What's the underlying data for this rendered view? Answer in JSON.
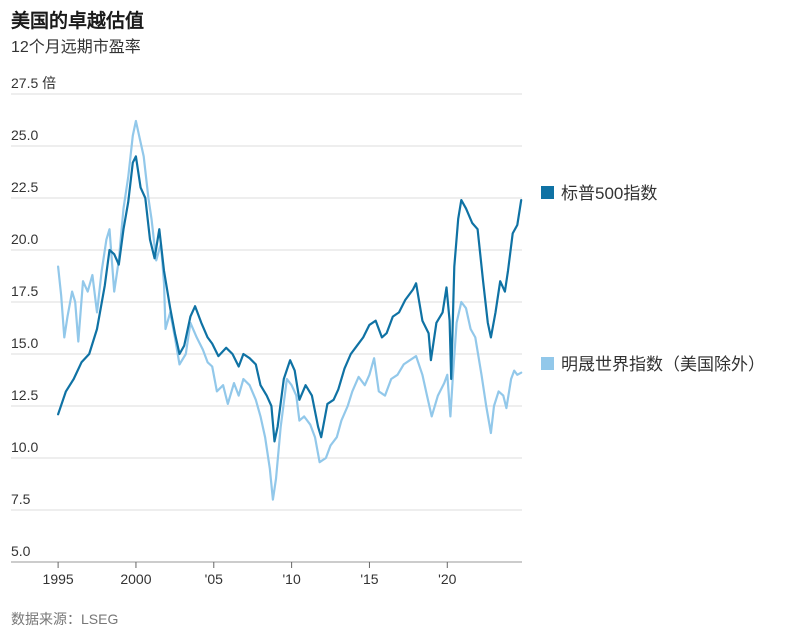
{
  "header": {
    "title": "美国的卓越估值",
    "subtitle": "12个月远期市盈率"
  },
  "footer": {
    "source": "数据来源：LSEG"
  },
  "chart_data": {
    "type": "line",
    "title": "美国的卓越估值",
    "subtitle": "12个月远期市盈率",
    "y_unit": "倍",
    "ylim": [
      5.0,
      27.5
    ],
    "y_ticks": [
      "27.5 倍",
      "25.0",
      "22.5",
      "20.0",
      "17.5",
      "15.0",
      "12.5",
      "10.0",
      "7.5",
      "5.0"
    ],
    "xlim": [
      1994.8,
      2024.8
    ],
    "x_ticks": [
      {
        "value": 1995,
        "label": "1995"
      },
      {
        "value": 2000,
        "label": "2000"
      },
      {
        "value": 2005,
        "label": "'05"
      },
      {
        "value": 2010,
        "label": "'10"
      },
      {
        "value": 2015,
        "label": "'15"
      },
      {
        "value": 2020,
        "label": "'20"
      }
    ],
    "grid": "horizontal",
    "legend": "right",
    "series": [
      {
        "name": "标普500指数",
        "color": "#0f72a4",
        "points": [
          [
            1995.0,
            12.1
          ],
          [
            1995.5,
            13.2
          ],
          [
            1996.0,
            13.8
          ],
          [
            1996.5,
            14.6
          ],
          [
            1997.0,
            15.0
          ],
          [
            1997.5,
            16.2
          ],
          [
            1998.0,
            18.3
          ],
          [
            1998.3,
            20.0
          ],
          [
            1998.6,
            19.8
          ],
          [
            1998.9,
            19.3
          ],
          [
            1999.2,
            21.0
          ],
          [
            1999.5,
            22.3
          ],
          [
            1999.8,
            24.2
          ],
          [
            2000.0,
            24.5
          ],
          [
            2000.3,
            23.0
          ],
          [
            2000.6,
            22.5
          ],
          [
            2000.9,
            20.5
          ],
          [
            2001.2,
            19.6
          ],
          [
            2001.5,
            21.0
          ],
          [
            2001.8,
            19.0
          ],
          [
            2002.2,
            17.2
          ],
          [
            2002.5,
            16.0
          ],
          [
            2002.8,
            15.0
          ],
          [
            2003.1,
            15.4
          ],
          [
            2003.5,
            16.8
          ],
          [
            2003.8,
            17.3
          ],
          [
            2004.2,
            16.5
          ],
          [
            2004.6,
            15.8
          ],
          [
            2004.9,
            15.5
          ],
          [
            2005.3,
            14.9
          ],
          [
            2005.8,
            15.3
          ],
          [
            2006.2,
            15.0
          ],
          [
            2006.6,
            14.4
          ],
          [
            2006.9,
            15.0
          ],
          [
            2007.3,
            14.8
          ],
          [
            2007.7,
            14.5
          ],
          [
            2008.0,
            13.5
          ],
          [
            2008.4,
            13.0
          ],
          [
            2008.7,
            12.5
          ],
          [
            2008.9,
            10.8
          ],
          [
            2009.1,
            11.5
          ],
          [
            2009.5,
            13.8
          ],
          [
            2009.9,
            14.7
          ],
          [
            2010.2,
            14.2
          ],
          [
            2010.5,
            12.8
          ],
          [
            2010.9,
            13.5
          ],
          [
            2011.3,
            13.0
          ],
          [
            2011.7,
            11.5
          ],
          [
            2011.9,
            11.0
          ],
          [
            2012.3,
            12.6
          ],
          [
            2012.7,
            12.8
          ],
          [
            2013.0,
            13.3
          ],
          [
            2013.4,
            14.3
          ],
          [
            2013.8,
            15.0
          ],
          [
            2014.2,
            15.4
          ],
          [
            2014.6,
            15.8
          ],
          [
            2015.0,
            16.4
          ],
          [
            2015.4,
            16.6
          ],
          [
            2015.8,
            15.8
          ],
          [
            2016.1,
            16.0
          ],
          [
            2016.5,
            16.8
          ],
          [
            2016.9,
            17.0
          ],
          [
            2017.3,
            17.6
          ],
          [
            2017.8,
            18.1
          ],
          [
            2018.0,
            18.4
          ],
          [
            2018.4,
            16.6
          ],
          [
            2018.8,
            16.0
          ],
          [
            2018.95,
            14.7
          ],
          [
            2019.3,
            16.5
          ],
          [
            2019.7,
            17.0
          ],
          [
            2019.95,
            18.2
          ],
          [
            2020.15,
            16.6
          ],
          [
            2020.25,
            13.8
          ],
          [
            2020.45,
            19.2
          ],
          [
            2020.7,
            21.5
          ],
          [
            2020.9,
            22.4
          ],
          [
            2021.2,
            22.0
          ],
          [
            2021.6,
            21.3
          ],
          [
            2021.95,
            21.0
          ],
          [
            2022.3,
            18.5
          ],
          [
            2022.6,
            16.5
          ],
          [
            2022.8,
            15.8
          ],
          [
            2023.1,
            17.0
          ],
          [
            2023.4,
            18.5
          ],
          [
            2023.7,
            18.0
          ],
          [
            2023.9,
            19.0
          ],
          [
            2024.2,
            20.8
          ],
          [
            2024.5,
            21.2
          ],
          [
            2024.75,
            22.4
          ]
        ]
      },
      {
        "name": "明晟世界指数（美国除外）",
        "color": "#92c8ea",
        "points": [
          [
            1995.0,
            19.2
          ],
          [
            1995.2,
            17.8
          ],
          [
            1995.4,
            15.8
          ],
          [
            1995.6,
            16.8
          ],
          [
            1995.9,
            18.0
          ],
          [
            1996.1,
            17.5
          ],
          [
            1996.3,
            15.6
          ],
          [
            1996.6,
            18.5
          ],
          [
            1996.9,
            18.0
          ],
          [
            1997.2,
            18.8
          ],
          [
            1997.5,
            17.0
          ],
          [
            1997.8,
            19.0
          ],
          [
            1998.1,
            20.5
          ],
          [
            1998.3,
            21.0
          ],
          [
            1998.6,
            18.0
          ],
          [
            1998.9,
            19.5
          ],
          [
            1999.2,
            22.0
          ],
          [
            1999.5,
            23.5
          ],
          [
            1999.8,
            25.5
          ],
          [
            2000.0,
            26.2
          ],
          [
            2000.2,
            25.5
          ],
          [
            2000.5,
            24.5
          ],
          [
            2000.8,
            22.5
          ],
          [
            2001.0,
            21.5
          ],
          [
            2001.3,
            19.5
          ],
          [
            2001.6,
            20.3
          ],
          [
            2001.8,
            18.4
          ],
          [
            2001.9,
            16.2
          ],
          [
            2002.2,
            17.0
          ],
          [
            2002.5,
            15.8
          ],
          [
            2002.8,
            14.5
          ],
          [
            2003.2,
            15.0
          ],
          [
            2003.5,
            16.5
          ],
          [
            2003.9,
            15.8
          ],
          [
            2004.3,
            15.2
          ],
          [
            2004.6,
            14.6
          ],
          [
            2004.9,
            14.4
          ],
          [
            2005.2,
            13.2
          ],
          [
            2005.6,
            13.5
          ],
          [
            2005.9,
            12.6
          ],
          [
            2006.3,
            13.6
          ],
          [
            2006.6,
            13.0
          ],
          [
            2006.9,
            13.8
          ],
          [
            2007.3,
            13.5
          ],
          [
            2007.7,
            12.8
          ],
          [
            2008.0,
            12.0
          ],
          [
            2008.3,
            11.0
          ],
          [
            2008.6,
            9.5
          ],
          [
            2008.8,
            8.0
          ],
          [
            2009.0,
            9.0
          ],
          [
            2009.3,
            11.5
          ],
          [
            2009.7,
            13.8
          ],
          [
            2010.0,
            13.5
          ],
          [
            2010.3,
            13.0
          ],
          [
            2010.5,
            11.8
          ],
          [
            2010.8,
            12.0
          ],
          [
            2011.2,
            11.6
          ],
          [
            2011.5,
            11.0
          ],
          [
            2011.8,
            9.8
          ],
          [
            2012.2,
            10.0
          ],
          [
            2012.5,
            10.6
          ],
          [
            2012.9,
            11.0
          ],
          [
            2013.2,
            11.8
          ],
          [
            2013.6,
            12.5
          ],
          [
            2013.9,
            13.2
          ],
          [
            2014.3,
            13.9
          ],
          [
            2014.7,
            13.5
          ],
          [
            2015.0,
            14.0
          ],
          [
            2015.3,
            14.8
          ],
          [
            2015.6,
            13.2
          ],
          [
            2016.0,
            13.0
          ],
          [
            2016.4,
            13.8
          ],
          [
            2016.8,
            14.0
          ],
          [
            2017.2,
            14.5
          ],
          [
            2017.6,
            14.7
          ],
          [
            2018.0,
            14.9
          ],
          [
            2018.4,
            14.0
          ],
          [
            2018.7,
            13.0
          ],
          [
            2019.0,
            12.0
          ],
          [
            2019.4,
            13.0
          ],
          [
            2019.8,
            13.6
          ],
          [
            2020.0,
            14.0
          ],
          [
            2020.2,
            12.0
          ],
          [
            2020.35,
            13.8
          ],
          [
            2020.6,
            16.5
          ],
          [
            2020.9,
            17.5
          ],
          [
            2021.2,
            17.2
          ],
          [
            2021.5,
            16.2
          ],
          [
            2021.8,
            15.8
          ],
          [
            2022.2,
            14.0
          ],
          [
            2022.5,
            12.5
          ],
          [
            2022.8,
            11.2
          ],
          [
            2023.0,
            12.5
          ],
          [
            2023.3,
            13.2
          ],
          [
            2023.6,
            13.0
          ],
          [
            2023.8,
            12.4
          ],
          [
            2024.1,
            13.8
          ],
          [
            2024.3,
            14.2
          ],
          [
            2024.5,
            14.0
          ],
          [
            2024.75,
            14.1
          ]
        ]
      }
    ]
  }
}
